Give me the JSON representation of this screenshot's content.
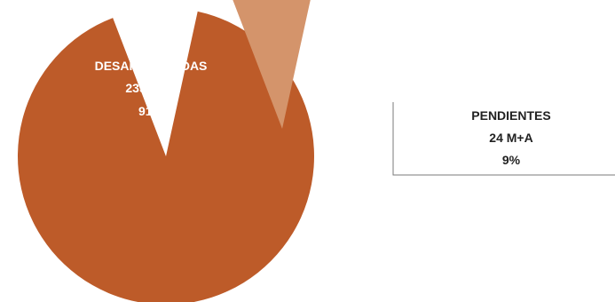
{
  "chart_data": {
    "type": "pie",
    "slices": [
      {
        "label": "DESARROLLADAS",
        "value": 235,
        "value_text": "235 M+A",
        "percent_text": "91%",
        "color": "#bd5b29",
        "exploded": false
      },
      {
        "label": "PENDIENTES",
        "value": 24,
        "value_text": "24 M+A",
        "percent_text": "9%",
        "color": "#d4946b",
        "exploded": true
      }
    ]
  }
}
